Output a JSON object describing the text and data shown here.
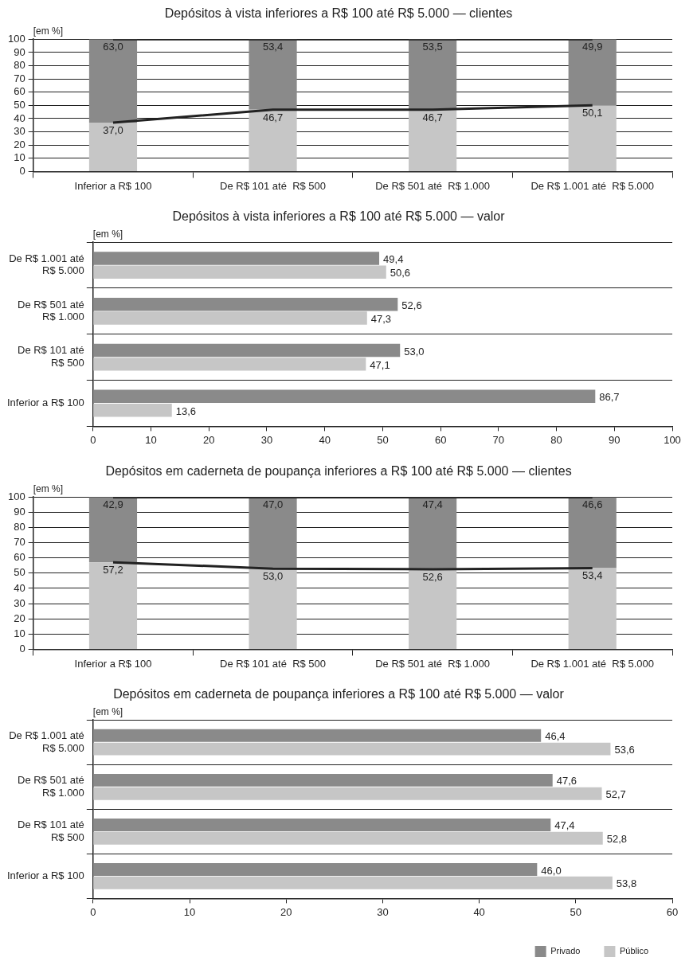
{
  "chart_data": [
    {
      "type": "bar",
      "title": "Depósitos à vista inferiores a R$ 100 até R$ 5.000 — clientes",
      "ylabel": "[em %]",
      "categories": [
        "Inferior a R$ 100",
        "De R$ 101 até  R$ 500",
        "De R$ 501 até  R$ 1.000",
        "De R$ 1.001 até  R$ 5.000"
      ],
      "stacked": true,
      "ylim": [
        0,
        100.1
      ],
      "yticks": [
        0,
        10,
        20,
        30,
        40,
        50,
        60,
        70,
        80,
        90,
        100
      ],
      "grid": "y",
      "legend": false,
      "series": [
        {
          "color": "#c6c6c6",
          "values": [
            37.0,
            46.7,
            46.7,
            50.1
          ],
          "value_labels": [
            "37,0",
            "46,7",
            "46,7",
            "50,1"
          ]
        },
        {
          "color": "#8a8a8a",
          "values": [
            63.0,
            53.4,
            53.5,
            49.9
          ],
          "value_labels": [
            "63,0",
            "53,4",
            "53,5",
            "49,9"
          ]
        },
        {
          "type": "line",
          "color": "#222222",
          "values": [
            37.0,
            46.7,
            46.7,
            50.1
          ]
        },
        {
          "type": "line",
          "color": "#222222",
          "values": [
            100,
            100,
            100,
            100
          ]
        }
      ]
    },
    {
      "type": "bar",
      "title": "Depósitos à vista inferiores a R$ 100 até R$ 5.000 — valor",
      "ylabel": "[em %]",
      "orientation": "horizontal",
      "categories": [
        "De R$ 1.001 até R$ 5.000",
        "De R$ 501 até R$ 1.000",
        "De R$ 101 até R$ 500",
        "Inferior a R$ 100"
      ],
      "xlim": [
        0,
        100
      ],
      "xticks": [
        0,
        10,
        20,
        30,
        40,
        50,
        60,
        70,
        80,
        90,
        100
      ],
      "grid": "y",
      "legend": false,
      "series": [
        {
          "color": "#8a8a8a",
          "values": [
            49.4,
            52.6,
            53.0,
            86.7
          ],
          "value_labels": [
            "49,4",
            "52,6",
            "53,0",
            "86,7"
          ]
        },
        {
          "color": "#c6c6c6",
          "values": [
            50.6,
            47.3,
            47.1,
            13.6
          ],
          "value_labels": [
            "50,6",
            "47,3",
            "47,1",
            "13,6"
          ]
        }
      ]
    },
    {
      "type": "bar",
      "title": "Depósitos em caderneta de poupança inferiores a R$ 100 até R$ 5.000 — clientes",
      "ylabel": "[em %]",
      "categories": [
        "Inferior a R$ 100",
        "De R$ 101 até  R$ 500",
        "De R$ 501 até  R$ 1.000",
        "De R$ 1.001 até  R$ 5.000"
      ],
      "stacked": true,
      "ylim": [
        0,
        100.1
      ],
      "yticks": [
        0,
        10,
        20,
        30,
        40,
        50,
        60,
        70,
        80,
        90,
        100
      ],
      "grid": "y",
      "legend": false,
      "series": [
        {
          "color": "#c6c6c6",
          "values": [
            57.2,
            53.0,
            52.6,
            53.4
          ],
          "value_labels": [
            "57,2",
            "53,0",
            "52,6",
            "53,4"
          ]
        },
        {
          "color": "#8a8a8a",
          "values": [
            42.9,
            47.0,
            47.4,
            46.6
          ],
          "value_labels": [
            "42,9",
            "47,0",
            "47,4",
            "46,6"
          ]
        },
        {
          "type": "line",
          "color": "#222222",
          "values": [
            57.2,
            53.0,
            52.6,
            53.4
          ]
        },
        {
          "type": "line",
          "color": "#222222",
          "values": [
            100,
            100,
            100,
            100
          ]
        }
      ]
    },
    {
      "type": "bar",
      "title": "Depósitos em caderneta de poupança inferiores a R$ 100 até R$ 5.000 — valor",
      "ylabel": "[em %]",
      "orientation": "horizontal",
      "categories": [
        "De R$ 1.001 até R$ 5.000",
        "De R$ 501 até R$ 1.000",
        "De R$ 101 até R$ 500",
        "Inferior a R$ 100"
      ],
      "xlim": [
        0,
        60
      ],
      "xticks": [
        0,
        10,
        20,
        30,
        40,
        50,
        60
      ],
      "grid": "y",
      "legend": "bottom right",
      "series": [
        {
          "name": "Privado",
          "color": "#8a8a8a",
          "values": [
            46.4,
            47.6,
            47.4,
            46.0
          ],
          "value_labels": [
            "46,4",
            "47,6",
            "47,4",
            "46,0"
          ]
        },
        {
          "name": "Público",
          "color": "#c6c6c6",
          "values": [
            53.6,
            52.7,
            52.8,
            53.8
          ],
          "value_labels": [
            "53,6",
            "52,7",
            "52,8",
            "53,8"
          ]
        }
      ]
    }
  ]
}
